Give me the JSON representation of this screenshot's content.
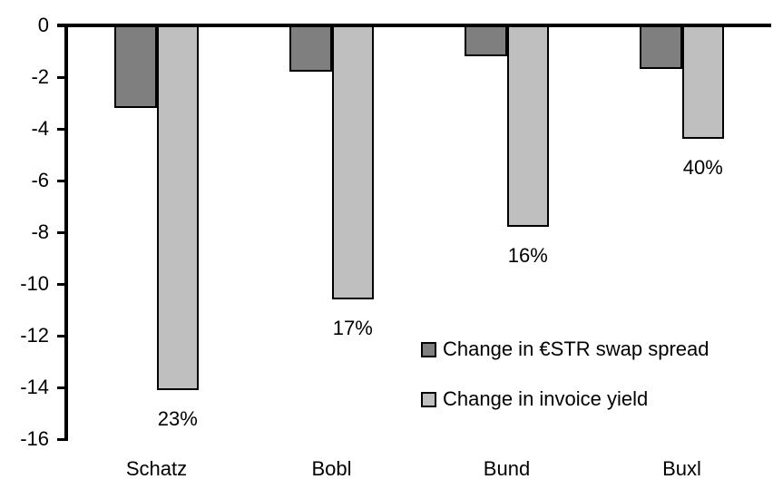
{
  "chart_data": {
    "type": "bar",
    "title": "",
    "categories": [
      "Schatz",
      "Bobl",
      "Bund",
      "Buxl"
    ],
    "series": [
      {
        "name": "Change in €STR swap spread",
        "color": "#7F7F7F",
        "values": [
          -3.2,
          -1.8,
          -1.2,
          -1.7
        ]
      },
      {
        "name": "Change in invoice yield",
        "color": "#BFBFBF",
        "values": [
          -14.1,
          -10.6,
          -7.8,
          -4.4
        ],
        "value_labels": [
          "23%",
          "17%",
          "16%",
          "40%"
        ]
      }
    ],
    "ylim": [
      -16,
      0
    ],
    "yticks": [
      0,
      -2,
      -4,
      -6,
      -8,
      -10,
      -12,
      -14,
      -16
    ],
    "ytick_labels": [
      "0",
      "-2",
      "-4",
      "-6",
      "-8",
      "-10",
      "-12",
      "-14",
      "-16"
    ],
    "grid": false,
    "legend_position": "inside-right",
    "bar_border_color": "#000000",
    "axis_color": "#000000",
    "text_color": "#000000",
    "background_color": "#FFFFFF"
  }
}
